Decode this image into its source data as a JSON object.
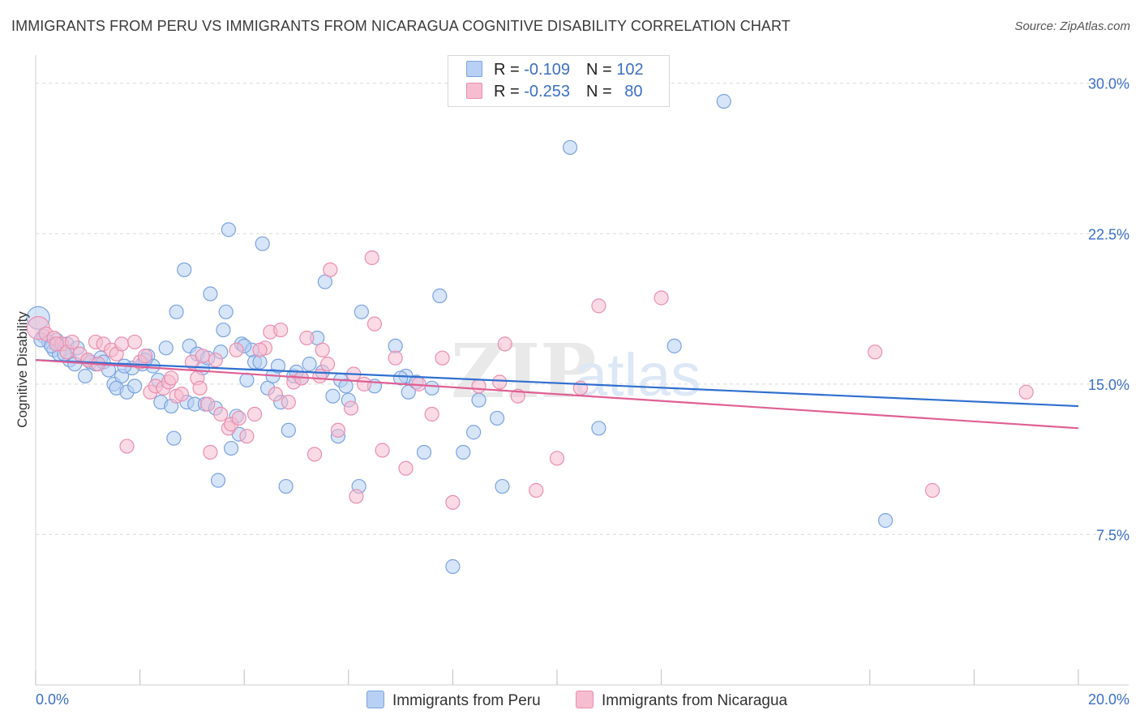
{
  "title": "IMMIGRANTS FROM PERU VS IMMIGRANTS FROM NICARAGUA COGNITIVE DISABILITY CORRELATION CHART",
  "source": "Source: ZipAtlas.com",
  "watermark": "ZIPatlas",
  "colors": {
    "peru_fill": "#b7d0f3",
    "peru_stroke": "#7aa3e0",
    "peru_line": "#2f6fd0",
    "nic_fill": "#f6bcd0",
    "nic_stroke": "#e98fae",
    "nic_line": "#e05f94",
    "axis_label": "#3b6fc4",
    "grid": "#d9d9d9"
  },
  "legend": {
    "peru": {
      "r_label": "R = ",
      "r_value": "-0.109",
      "n_label": "N = ",
      "n_value": "102"
    },
    "nicaragua": {
      "r_label": "R = ",
      "r_value": "-0.253",
      "n_label": "N = ",
      "n_value": "80"
    }
  },
  "bottom_legend": {
    "peru": "Immigrants from Peru",
    "nicaragua": "Immigrants from Nicaragua"
  },
  "chart_data": {
    "type": "scatter",
    "title": "IMMIGRANTS FROM PERU VS IMMIGRANTS FROM NICARAGUA COGNITIVE DISABILITY CORRELATION CHART",
    "xlabel": "",
    "ylabel": "Cognitive Disability",
    "xlim": [
      0,
      20
    ],
    "ylim": [
      0,
      31
    ],
    "x_tick_labels": [
      "0.0%",
      "20.0%"
    ],
    "y_ticks": [
      7.5,
      15.0,
      22.5,
      30.0
    ],
    "y_tick_labels": [
      "7.5%",
      "15.0%",
      "22.5%",
      "30.0%"
    ],
    "grid": "horizontal dashed",
    "legend_position": "top-center",
    "series": [
      {
        "name": "Immigrants from Peru",
        "R": -0.109,
        "N": 102,
        "trend": {
          "x": [
            0,
            20
          ],
          "y": [
            16.2,
            13.9
          ]
        },
        "points": [
          [
            0.05,
            18.3
          ],
          [
            0.15,
            17.4
          ],
          [
            0.25,
            17.1
          ],
          [
            0.35,
            16.7
          ],
          [
            0.4,
            17.2
          ],
          [
            0.45,
            16.5
          ],
          [
            0.6,
            17.0
          ],
          [
            0.65,
            16.2
          ],
          [
            0.75,
            16.0
          ],
          [
            0.8,
            16.8
          ],
          [
            0.95,
            15.4
          ],
          [
            1.05,
            16.1
          ],
          [
            1.15,
            16.0
          ],
          [
            1.25,
            16.3
          ],
          [
            1.3,
            16.1
          ],
          [
            1.4,
            15.7
          ],
          [
            1.5,
            15.0
          ],
          [
            1.55,
            14.8
          ],
          [
            1.65,
            15.4
          ],
          [
            1.75,
            14.6
          ],
          [
            1.85,
            15.8
          ],
          [
            1.9,
            14.9
          ],
          [
            2.05,
            16.0
          ],
          [
            2.15,
            16.4
          ],
          [
            2.25,
            15.9
          ],
          [
            2.35,
            15.2
          ],
          [
            2.4,
            14.1
          ],
          [
            2.5,
            16.8
          ],
          [
            2.6,
            13.9
          ],
          [
            2.65,
            12.3
          ],
          [
            2.7,
            18.6
          ],
          [
            2.85,
            20.7
          ],
          [
            2.9,
            14.1
          ],
          [
            2.95,
            16.9
          ],
          [
            3.05,
            14.0
          ],
          [
            3.1,
            16.5
          ],
          [
            3.2,
            15.8
          ],
          [
            3.25,
            14.0
          ],
          [
            3.35,
            19.5
          ],
          [
            3.45,
            13.8
          ],
          [
            3.5,
            10.2
          ],
          [
            3.55,
            16.6
          ],
          [
            3.6,
            17.7
          ],
          [
            3.65,
            18.6
          ],
          [
            3.7,
            22.7
          ],
          [
            3.75,
            11.8
          ],
          [
            3.85,
            13.4
          ],
          [
            3.9,
            12.5
          ],
          [
            3.95,
            17.0
          ],
          [
            4.05,
            15.2
          ],
          [
            4.15,
            16.7
          ],
          [
            4.2,
            16.1
          ],
          [
            4.3,
            16.1
          ],
          [
            4.35,
            22.0
          ],
          [
            4.45,
            14.8
          ],
          [
            4.55,
            15.4
          ],
          [
            4.65,
            15.9
          ],
          [
            4.7,
            14.1
          ],
          [
            4.8,
            9.9
          ],
          [
            4.85,
            12.7
          ],
          [
            4.95,
            15.4
          ],
          [
            5.1,
            15.3
          ],
          [
            5.25,
            16.0
          ],
          [
            5.4,
            17.3
          ],
          [
            5.5,
            15.6
          ],
          [
            5.55,
            20.1
          ],
          [
            5.7,
            14.4
          ],
          [
            5.8,
            12.4
          ],
          [
            5.85,
            15.2
          ],
          [
            5.95,
            14.9
          ],
          [
            6.2,
            9.9
          ],
          [
            6.25,
            18.6
          ],
          [
            6.5,
            14.9
          ],
          [
            6.9,
            16.9
          ],
          [
            7.1,
            15.4
          ],
          [
            7.15,
            14.6
          ],
          [
            7.3,
            15.1
          ],
          [
            7.45,
            11.6
          ],
          [
            7.6,
            14.8
          ],
          [
            7.75,
            19.4
          ],
          [
            8.0,
            5.9
          ],
          [
            8.2,
            11.6
          ],
          [
            8.4,
            12.6
          ],
          [
            8.5,
            14.2
          ],
          [
            8.85,
            13.3
          ],
          [
            8.95,
            9.9
          ],
          [
            10.25,
            26.8
          ],
          [
            10.8,
            12.8
          ],
          [
            12.25,
            16.9
          ],
          [
            13.2,
            29.1
          ],
          [
            16.3,
            8.2
          ],
          [
            0.1,
            17.2
          ],
          [
            0.55,
            16.5
          ],
          [
            1.0,
            16.2
          ],
          [
            1.7,
            15.9
          ],
          [
            2.1,
            16.2
          ],
          [
            3.3,
            16.3
          ],
          [
            4.0,
            16.9
          ],
          [
            5.0,
            15.6
          ],
          [
            6.0,
            14.2
          ],
          [
            7.0,
            15.3
          ],
          [
            0.3,
            16.9
          ]
        ]
      },
      {
        "name": "Immigrants from Nicaragua",
        "R": -0.253,
        "N": 80,
        "trend": {
          "x": [
            0,
            20
          ],
          "y": [
            16.2,
            12.8
          ]
        },
        "points": [
          [
            0.05,
            17.8
          ],
          [
            0.2,
            17.5
          ],
          [
            0.35,
            17.3
          ],
          [
            0.5,
            17.0
          ],
          [
            0.6,
            16.6
          ],
          [
            0.7,
            17.1
          ],
          [
            0.85,
            16.5
          ],
          [
            1.0,
            16.2
          ],
          [
            1.15,
            17.1
          ],
          [
            1.3,
            17.0
          ],
          [
            1.45,
            16.7
          ],
          [
            1.55,
            16.5
          ],
          [
            1.65,
            17.0
          ],
          [
            1.75,
            11.9
          ],
          [
            1.9,
            17.1
          ],
          [
            2.0,
            16.1
          ],
          [
            2.1,
            16.4
          ],
          [
            2.2,
            14.6
          ],
          [
            2.3,
            14.9
          ],
          [
            2.45,
            14.8
          ],
          [
            2.55,
            15.1
          ],
          [
            2.7,
            14.4
          ],
          [
            2.8,
            14.5
          ],
          [
            3.0,
            16.1
          ],
          [
            3.1,
            15.3
          ],
          [
            3.15,
            14.8
          ],
          [
            3.2,
            16.4
          ],
          [
            3.3,
            14.0
          ],
          [
            3.35,
            11.6
          ],
          [
            3.45,
            16.2
          ],
          [
            3.55,
            13.5
          ],
          [
            3.7,
            12.8
          ],
          [
            3.75,
            13.0
          ],
          [
            3.85,
            16.7
          ],
          [
            3.9,
            13.3
          ],
          [
            4.05,
            12.4
          ],
          [
            4.2,
            13.5
          ],
          [
            4.4,
            16.8
          ],
          [
            4.5,
            17.6
          ],
          [
            4.6,
            14.5
          ],
          [
            4.7,
            17.7
          ],
          [
            4.85,
            14.1
          ],
          [
            4.95,
            15.1
          ],
          [
            5.2,
            17.3
          ],
          [
            5.35,
            11.5
          ],
          [
            5.45,
            15.4
          ],
          [
            5.5,
            16.7
          ],
          [
            5.6,
            16.0
          ],
          [
            5.65,
            20.7
          ],
          [
            5.8,
            12.7
          ],
          [
            6.1,
            15.5
          ],
          [
            6.15,
            9.4
          ],
          [
            6.3,
            15.0
          ],
          [
            6.45,
            21.3
          ],
          [
            6.5,
            18.0
          ],
          [
            6.65,
            11.7
          ],
          [
            6.9,
            16.3
          ],
          [
            7.1,
            10.8
          ],
          [
            7.35,
            15.0
          ],
          [
            7.6,
            13.5
          ],
          [
            7.8,
            16.3
          ],
          [
            8.0,
            9.1
          ],
          [
            8.5,
            14.9
          ],
          [
            8.9,
            15.1
          ],
          [
            9.0,
            17.0
          ],
          [
            9.25,
            14.4
          ],
          [
            9.6,
            9.7
          ],
          [
            10.0,
            11.3
          ],
          [
            10.45,
            14.8
          ],
          [
            10.8,
            18.9
          ],
          [
            12.0,
            19.3
          ],
          [
            16.1,
            16.6
          ],
          [
            17.2,
            9.7
          ],
          [
            19.0,
            14.6
          ],
          [
            0.4,
            17.0
          ],
          [
            1.2,
            16.0
          ],
          [
            2.6,
            15.3
          ],
          [
            4.3,
            16.7
          ],
          [
            5.1,
            15.3
          ],
          [
            6.05,
            13.8
          ]
        ]
      }
    ]
  }
}
